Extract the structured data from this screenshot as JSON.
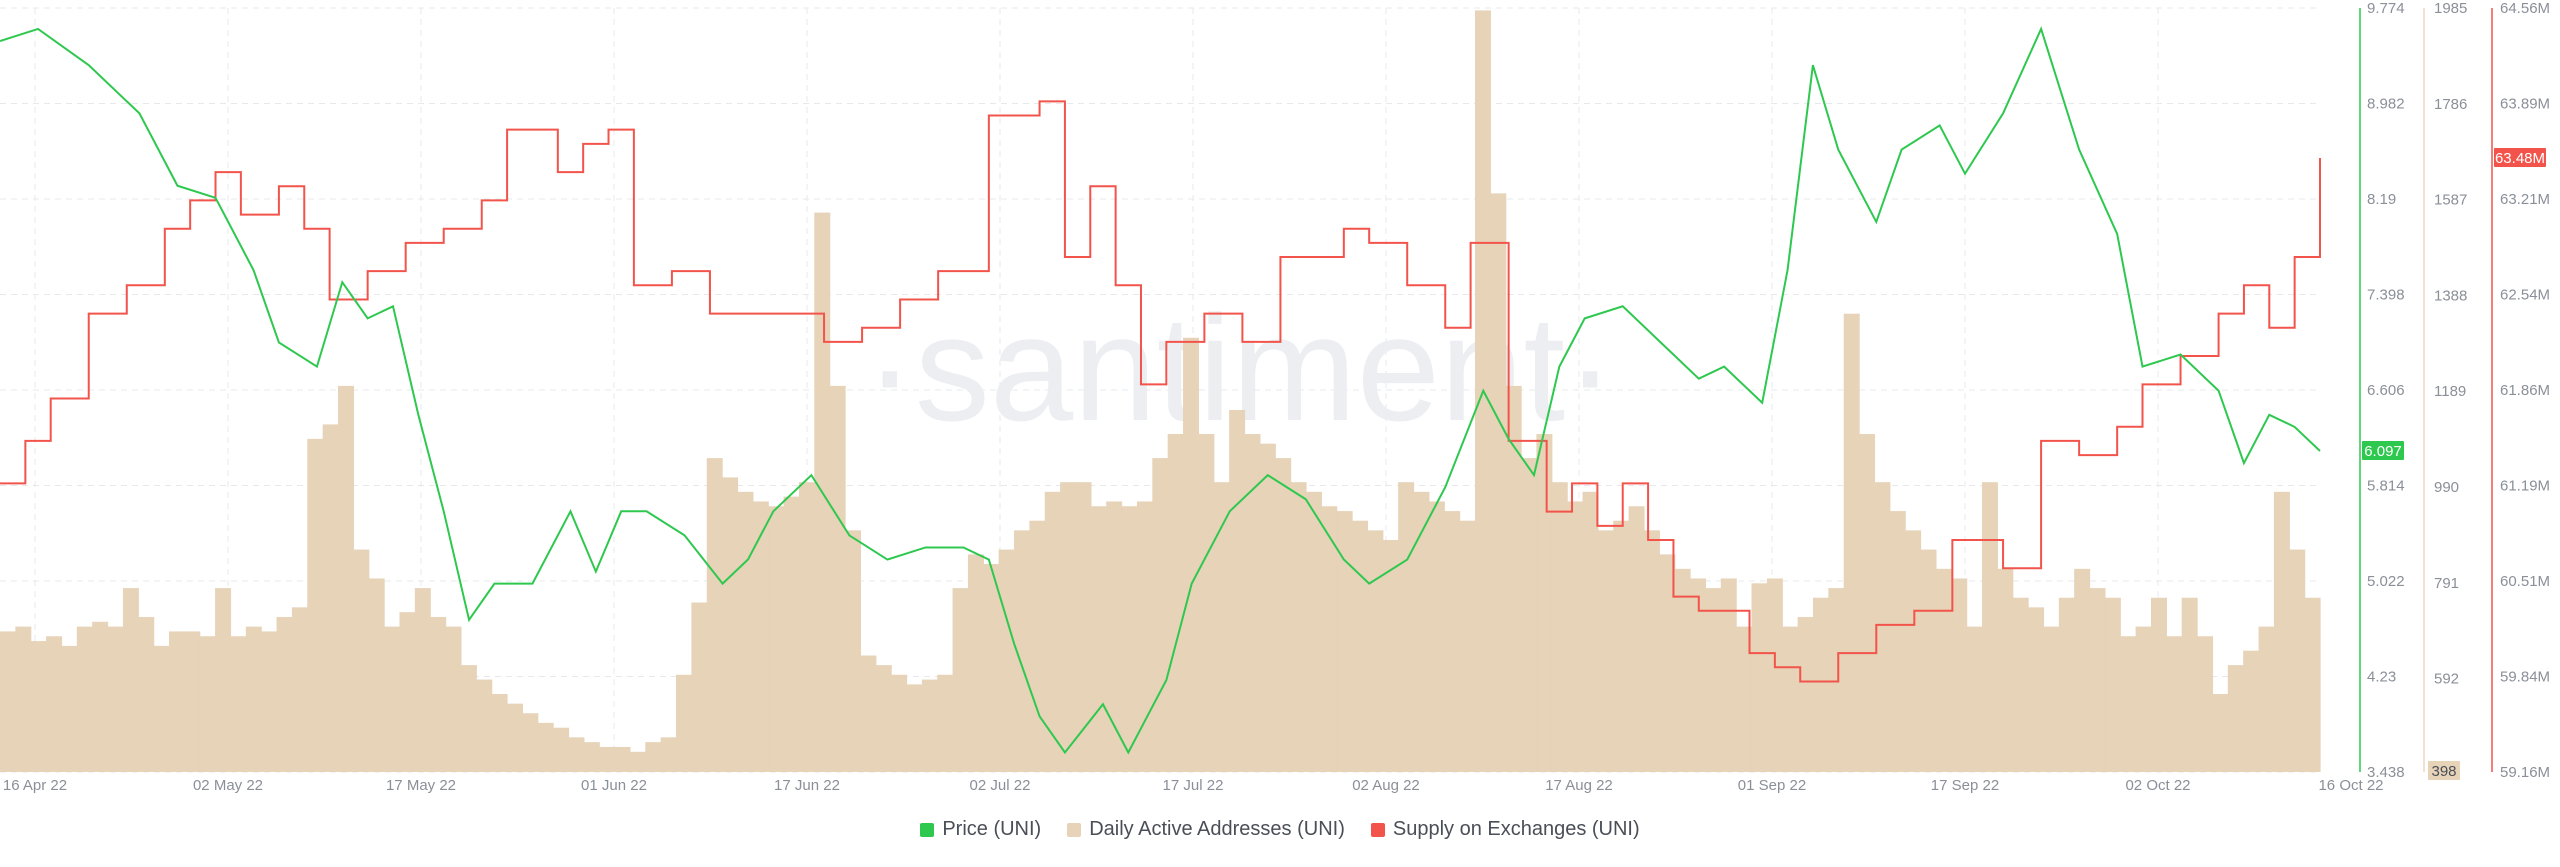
{
  "legend": {
    "price": "Price (UNI)",
    "daa": "Daily Active Addresses (UNI)",
    "supply": "Supply on Exchanges (UNI)"
  },
  "watermark": "·santiment·",
  "colors": {
    "price": "#2ec84f",
    "daa": "#e6d3b8",
    "supply": "#f2544b",
    "grid": "#e6e8ec",
    "text": "#8a8f98"
  },
  "chart_data": {
    "type": "line",
    "x_ticks": [
      "16 Apr 22",
      "02 May 22",
      "17 May 22",
      "01 Jun 22",
      "17 Jun 22",
      "02 Jul 22",
      "17 Jul 22",
      "02 Aug 22",
      "17 Aug 22",
      "01 Sep 22",
      "17 Sep 22",
      "02 Oct 22",
      "16 Oct 22"
    ],
    "x_range": [
      "2022-04-16",
      "2022-10-16"
    ],
    "axes": {
      "price": {
        "ticks": [
          "9.774",
          "8.982",
          "8.19",
          "7.398",
          "6.606",
          "5.814",
          "5.022",
          "4.23",
          "3.438"
        ],
        "range": [
          3.438,
          9.774
        ],
        "last_label": "6.097"
      },
      "daa": {
        "ticks": [
          "1985",
          "1786",
          "1587",
          "1388",
          "1189",
          "990",
          "791",
          "592"
        ],
        "range": [
          398,
          1985
        ],
        "min_label": "398"
      },
      "supply": {
        "ticks": [
          "64.56M",
          "63.89M",
          "63.21M",
          "62.54M",
          "61.86M",
          "61.19M",
          "60.51M",
          "59.84M",
          "59.16M"
        ],
        "range": [
          59.16,
          64.56
        ],
        "last_label": "63.48M"
      }
    },
    "grid": true,
    "legend_position": "bottom-center",
    "series": [
      {
        "name": "Price (UNI)",
        "points": [
          [
            "2022-04-16",
            9.5
          ],
          [
            "2022-04-19",
            9.6
          ],
          [
            "2022-04-23",
            9.3
          ],
          [
            "2022-04-27",
            8.9
          ],
          [
            "2022-04-30",
            8.3
          ],
          [
            "2022-05-03",
            8.2
          ],
          [
            "2022-05-06",
            7.6
          ],
          [
            "2022-05-08",
            7.0
          ],
          [
            "2022-05-11",
            6.8
          ],
          [
            "2022-05-13",
            7.5
          ],
          [
            "2022-05-15",
            7.2
          ],
          [
            "2022-05-17",
            7.3
          ],
          [
            "2022-05-19",
            6.4
          ],
          [
            "2022-05-21",
            5.6
          ],
          [
            "2022-05-23",
            4.7
          ],
          [
            "2022-05-25",
            5.0
          ],
          [
            "2022-05-28",
            5.0
          ],
          [
            "2022-05-31",
            5.6
          ],
          [
            "2022-06-02",
            5.1
          ],
          [
            "2022-06-04",
            5.6
          ],
          [
            "2022-06-06",
            5.6
          ],
          [
            "2022-06-09",
            5.4
          ],
          [
            "2022-06-12",
            5.0
          ],
          [
            "2022-06-14",
            5.2
          ],
          [
            "2022-06-16",
            5.6
          ],
          [
            "2022-06-19",
            5.9
          ],
          [
            "2022-06-22",
            5.4
          ],
          [
            "2022-06-25",
            5.2
          ],
          [
            "2022-06-28",
            5.3
          ],
          [
            "2022-07-01",
            5.3
          ],
          [
            "2022-07-03",
            5.2
          ],
          [
            "2022-07-05",
            4.5
          ],
          [
            "2022-07-07",
            3.9
          ],
          [
            "2022-07-09",
            3.6
          ],
          [
            "2022-07-12",
            4.0
          ],
          [
            "2022-07-14",
            3.6
          ],
          [
            "2022-07-17",
            4.2
          ],
          [
            "2022-07-19",
            5.0
          ],
          [
            "2022-07-22",
            5.6
          ],
          [
            "2022-07-25",
            5.9
          ],
          [
            "2022-07-28",
            5.7
          ],
          [
            "2022-07-31",
            5.2
          ],
          [
            "2022-08-02",
            5.0
          ],
          [
            "2022-08-05",
            5.2
          ],
          [
            "2022-08-08",
            5.8
          ],
          [
            "2022-08-11",
            6.6
          ],
          [
            "2022-08-13",
            6.2
          ],
          [
            "2022-08-15",
            5.9
          ],
          [
            "2022-08-17",
            6.8
          ],
          [
            "2022-08-19",
            7.2
          ],
          [
            "2022-08-22",
            7.3
          ],
          [
            "2022-08-25",
            7.0
          ],
          [
            "2022-08-28",
            6.7
          ],
          [
            "2022-08-30",
            6.8
          ],
          [
            "2022-09-02",
            6.5
          ],
          [
            "2022-09-04",
            7.6
          ],
          [
            "2022-09-06",
            9.3
          ],
          [
            "2022-09-08",
            8.6
          ],
          [
            "2022-09-11",
            8.0
          ],
          [
            "2022-09-13",
            8.6
          ],
          [
            "2022-09-16",
            8.8
          ],
          [
            "2022-09-18",
            8.4
          ],
          [
            "2022-09-21",
            8.9
          ],
          [
            "2022-09-24",
            9.6
          ],
          [
            "2022-09-27",
            8.6
          ],
          [
            "2022-09-30",
            7.9
          ],
          [
            "2022-10-02",
            6.8
          ],
          [
            "2022-10-05",
            6.9
          ],
          [
            "2022-10-08",
            6.6
          ],
          [
            "2022-10-10",
            6.0
          ],
          [
            "2022-10-12",
            6.4
          ],
          [
            "2022-10-14",
            6.3
          ],
          [
            "2022-10-16",
            6.1
          ]
        ]
      },
      {
        "name": "Daily Active Addresses (UNI)",
        "values": [
          690,
          700,
          670,
          680,
          660,
          700,
          710,
          700,
          780,
          720,
          660,
          690,
          690,
          680,
          780,
          680,
          700,
          690,
          720,
          740,
          1090,
          1120,
          1200,
          860,
          800,
          700,
          730,
          780,
          720,
          700,
          620,
          590,
          560,
          540,
          520,
          500,
          490,
          470,
          460,
          450,
          450,
          440,
          460,
          470,
          600,
          750,
          1050,
          1010,
          980,
          960,
          950,
          970,
          1000,
          1560,
          1200,
          900,
          640,
          620,
          600,
          580,
          590,
          600,
          780,
          850,
          830,
          860,
          900,
          920,
          980,
          1000,
          1000,
          950,
          960,
          950,
          960,
          1050,
          1100,
          1300,
          1100,
          1000,
          1150,
          1100,
          1080,
          1050,
          1000,
          980,
          950,
          940,
          920,
          900,
          880,
          1000,
          980,
          960,
          940,
          920,
          1980,
          1600,
          1200,
          1050,
          1100,
          1000,
          960,
          980,
          900,
          920,
          950,
          900,
          850,
          820,
          800,
          780,
          800,
          700,
          790,
          800,
          700,
          720,
          760,
          780,
          1350,
          1100,
          1000,
          940,
          900,
          860,
          820,
          800,
          700,
          1000,
          820,
          760,
          740,
          700,
          760,
          820,
          780,
          760,
          680,
          700,
          760,
          680,
          760,
          680,
          560,
          620,
          650,
          700,
          980,
          860,
          760
        ]
      },
      {
        "name": "Supply on Exchanges (UNI)",
        "points": [
          [
            "2022-04-16",
            61.2
          ],
          [
            "2022-04-18",
            61.5
          ],
          [
            "2022-04-20",
            61.8
          ],
          [
            "2022-04-23",
            62.4
          ],
          [
            "2022-04-26",
            62.6
          ],
          [
            "2022-04-29",
            63.0
          ],
          [
            "2022-05-01",
            63.2
          ],
          [
            "2022-05-03",
            63.4
          ],
          [
            "2022-05-05",
            63.1
          ],
          [
            "2022-05-08",
            63.3
          ],
          [
            "2022-05-10",
            63.0
          ],
          [
            "2022-05-12",
            62.5
          ],
          [
            "2022-05-15",
            62.7
          ],
          [
            "2022-05-18",
            62.9
          ],
          [
            "2022-05-21",
            63.0
          ],
          [
            "2022-05-24",
            63.2
          ],
          [
            "2022-05-26",
            63.7
          ],
          [
            "2022-05-28",
            63.7
          ],
          [
            "2022-05-30",
            63.4
          ],
          [
            "2022-06-01",
            63.6
          ],
          [
            "2022-06-03",
            63.7
          ],
          [
            "2022-06-05",
            62.6
          ],
          [
            "2022-06-08",
            62.7
          ],
          [
            "2022-06-11",
            62.4
          ],
          [
            "2022-06-14",
            62.4
          ],
          [
            "2022-06-17",
            62.4
          ],
          [
            "2022-06-20",
            62.2
          ],
          [
            "2022-06-23",
            62.3
          ],
          [
            "2022-06-26",
            62.5
          ],
          [
            "2022-06-29",
            62.7
          ],
          [
            "2022-07-01",
            62.7
          ],
          [
            "2022-07-03",
            63.8
          ],
          [
            "2022-07-05",
            63.8
          ],
          [
            "2022-07-07",
            63.9
          ],
          [
            "2022-07-09",
            62.8
          ],
          [
            "2022-07-11",
            63.3
          ],
          [
            "2022-07-13",
            62.6
          ],
          [
            "2022-07-15",
            61.9
          ],
          [
            "2022-07-17",
            62.2
          ],
          [
            "2022-07-20",
            62.4
          ],
          [
            "2022-07-23",
            62.2
          ],
          [
            "2022-07-26",
            62.8
          ],
          [
            "2022-07-29",
            62.8
          ],
          [
            "2022-07-31",
            63.0
          ],
          [
            "2022-08-02",
            62.9
          ],
          [
            "2022-08-05",
            62.6
          ],
          [
            "2022-08-08",
            62.3
          ],
          [
            "2022-08-10",
            62.9
          ],
          [
            "2022-08-13",
            61.5
          ],
          [
            "2022-08-16",
            61.0
          ],
          [
            "2022-08-18",
            61.2
          ],
          [
            "2022-08-20",
            60.9
          ],
          [
            "2022-08-22",
            61.2
          ],
          [
            "2022-08-24",
            60.8
          ],
          [
            "2022-08-26",
            60.4
          ],
          [
            "2022-08-28",
            60.3
          ],
          [
            "2022-09-01",
            60.0
          ],
          [
            "2022-09-03",
            59.9
          ],
          [
            "2022-09-05",
            59.8
          ],
          [
            "2022-09-08",
            60.0
          ],
          [
            "2022-09-11",
            60.2
          ],
          [
            "2022-09-14",
            60.3
          ],
          [
            "2022-09-17",
            60.8
          ],
          [
            "2022-09-19",
            60.8
          ],
          [
            "2022-09-21",
            60.6
          ],
          [
            "2022-09-24",
            61.5
          ],
          [
            "2022-09-27",
            61.4
          ],
          [
            "2022-09-30",
            61.6
          ],
          [
            "2022-10-02",
            61.9
          ],
          [
            "2022-10-05",
            62.1
          ],
          [
            "2022-10-08",
            62.4
          ],
          [
            "2022-10-10",
            62.6
          ],
          [
            "2022-10-12",
            62.3
          ],
          [
            "2022-10-14",
            62.8
          ],
          [
            "2022-10-16",
            63.5
          ]
        ]
      }
    ]
  }
}
